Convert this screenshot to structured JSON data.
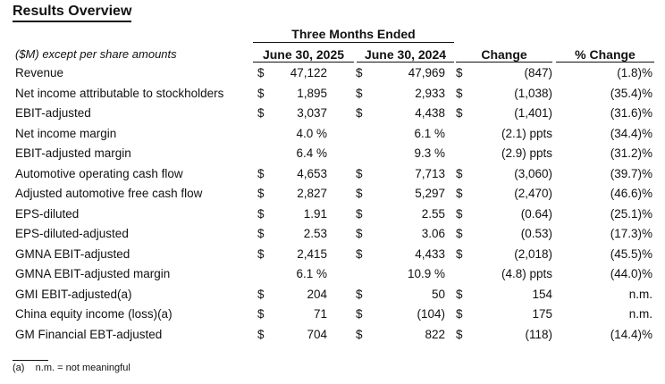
{
  "title": "Results Overview",
  "header": {
    "group": "Three Months Ended",
    "units": "($M) except per share amounts",
    "col1": "June 30, 2025",
    "col2": "June 30, 2024",
    "col3": "Change",
    "col4": "% Change"
  },
  "rows": [
    {
      "label": "Revenue",
      "d1": "$",
      "v1": "47,122",
      "d2": "$",
      "v2": "47,969",
      "d3": "$",
      "v3": "(847)",
      "v4": "(1.8)%"
    },
    {
      "label": "Net income attributable to stockholders",
      "d1": "$",
      "v1": "1,895",
      "d2": "$",
      "v2": "2,933",
      "d3": "$",
      "v3": "(1,038)",
      "v4": "(35.4)%"
    },
    {
      "label": "EBIT-adjusted",
      "d1": "$",
      "v1": "3,037",
      "d2": "$",
      "v2": "4,438",
      "d3": "$",
      "v3": "(1,401)",
      "v4": "(31.6)%"
    },
    {
      "label": "Net income margin",
      "d1": "",
      "v1": "4.0 %",
      "d2": "",
      "v2": "6.1 %",
      "d3": "",
      "v3": "(2.1) ppts",
      "v4": "(34.4)%"
    },
    {
      "label": "EBIT-adjusted margin",
      "d1": "",
      "v1": "6.4 %",
      "d2": "",
      "v2": "9.3 %",
      "d3": "",
      "v3": "(2.9) ppts",
      "v4": "(31.2)%"
    },
    {
      "label": "Automotive operating cash flow",
      "d1": "$",
      "v1": "4,653",
      "d2": "$",
      "v2": "7,713",
      "d3": "$",
      "v3": "(3,060)",
      "v4": "(39.7)%"
    },
    {
      "label": "Adjusted automotive free cash flow",
      "d1": "$",
      "v1": "2,827",
      "d2": "$",
      "v2": "5,297",
      "d3": "$",
      "v3": "(2,470)",
      "v4": "(46.6)%"
    },
    {
      "label": "EPS-diluted",
      "d1": "$",
      "v1": "1.91",
      "d2": "$",
      "v2": "2.55",
      "d3": "$",
      "v3": "(0.64)",
      "v4": "(25.1)%"
    },
    {
      "label": "EPS-diluted-adjusted",
      "d1": "$",
      "v1": "2.53",
      "d2": "$",
      "v2": "3.06",
      "d3": "$",
      "v3": "(0.53)",
      "v4": "(17.3)%"
    },
    {
      "label": "GMNA EBIT-adjusted",
      "d1": "$",
      "v1": "2,415",
      "d2": "$",
      "v2": "4,433",
      "d3": "$",
      "v3": "(2,018)",
      "v4": "(45.5)%"
    },
    {
      "label": "GMNA EBIT-adjusted margin",
      "d1": "",
      "v1": "6.1 %",
      "d2": "",
      "v2": "10.9 %",
      "d3": "",
      "v3": "(4.8) ppts",
      "v4": "(44.0)%"
    },
    {
      "label": "GMI EBIT-adjusted(a)",
      "d1": "$",
      "v1": "204",
      "d2": "$",
      "v2": "50",
      "d3": "$",
      "v3": "154",
      "v4": "n.m."
    },
    {
      "label": "China equity income (loss)(a)",
      "d1": "$",
      "v1": "71",
      "d2": "$",
      "v2": "(104)",
      "d3": "$",
      "v3": "175",
      "v4": "n.m."
    },
    {
      "label": "GM Financial EBT-adjusted",
      "d1": "$",
      "v1": "704",
      "d2": "$",
      "v2": "822",
      "d3": "$",
      "v3": "(118)",
      "v4": "(14.4)%"
    }
  ],
  "footnote": "(a)    n.m. = not meaningful"
}
